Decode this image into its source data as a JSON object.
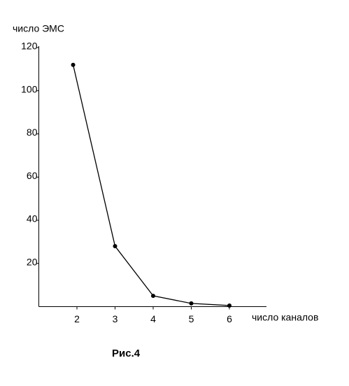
{
  "chart_data": {
    "type": "line",
    "y_label": "число ЭМС",
    "x_label": "число каналов",
    "caption": "Рис.4",
    "x": [
      1.9,
      3,
      4,
      5,
      6
    ],
    "values": [
      112,
      28,
      5,
      1.5,
      0.5
    ],
    "color": "#000000",
    "xlim": [
      1,
      7
    ],
    "xticks": [
      2,
      3,
      4,
      5,
      6
    ],
    "ylim": [
      0,
      120
    ],
    "yticks": [
      20,
      40,
      60,
      80,
      100,
      120
    ]
  }
}
